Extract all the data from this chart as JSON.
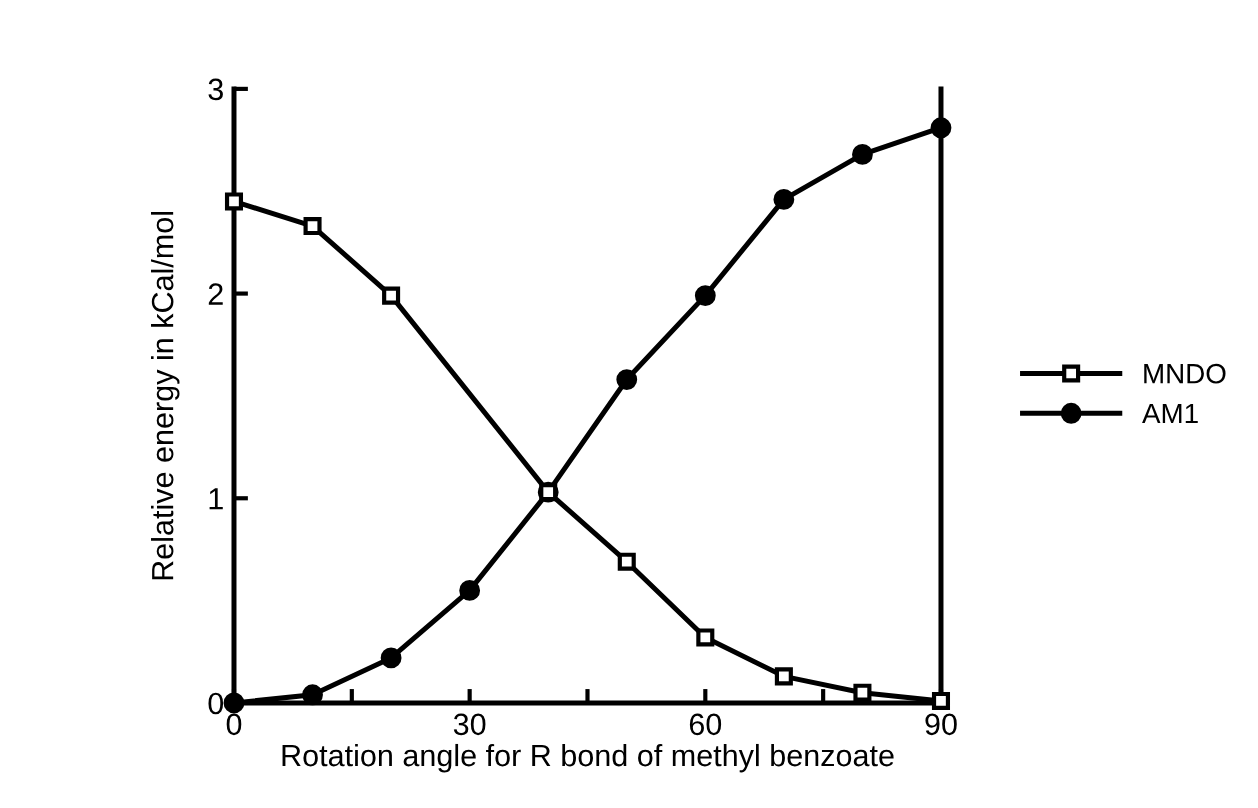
{
  "chart_data": {
    "type": "line",
    "xlabel": "Rotation angle for R bond of methyl benzoate",
    "ylabel": "Relative energy in kCal/mol",
    "x": [
      0,
      10,
      20,
      30,
      40,
      50,
      60,
      70,
      80,
      90
    ],
    "series": [
      {
        "name": "MNDO",
        "color": "#000000",
        "marker": "square",
        "x": [
          0,
          10,
          20,
          40,
          50,
          60,
          70,
          80,
          90
        ],
        "values": [
          2.45,
          2.33,
          1.99,
          1.03,
          0.69,
          0.32,
          0.13,
          0.05,
          0.01
        ]
      },
      {
        "name": "AM1",
        "color": "#000000",
        "marker": "circle",
        "values": [
          0,
          0.04,
          0.22,
          0.55,
          1.03,
          1.58,
          1.99,
          2.46,
          2.68,
          2.81
        ]
      }
    ],
    "xlim": [
      0,
      90
    ],
    "xticks": [
      0,
      {
        "value": 15,
        "label": null
      },
      30,
      {
        "value": 45,
        "label": null
      },
      60,
      {
        "value": 75,
        "label": null
      },
      90
    ],
    "ylim": [
      0,
      3
    ],
    "yticks": [
      0,
      1,
      2,
      3
    ],
    "grid": false,
    "legend": "right",
    "line_style": "solid"
  }
}
